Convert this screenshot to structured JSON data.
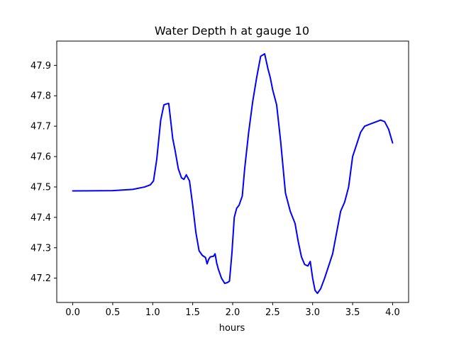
{
  "chart_data": {
    "type": "line",
    "title": "Water Depth h at gauge 10",
    "xlabel": "hours",
    "ylabel": "",
    "xlim": [
      -0.2,
      4.2
    ],
    "ylim": [
      47.12,
      47.98
    ],
    "xticks": [
      0.0,
      0.5,
      1.0,
      1.5,
      2.0,
      2.5,
      3.0,
      3.5,
      4.0
    ],
    "xtick_labels": [
      "0.0",
      "0.5",
      "1.0",
      "1.5",
      "2.0",
      "2.5",
      "3.0",
      "3.5",
      "4.0"
    ],
    "yticks": [
      47.2,
      47.3,
      47.4,
      47.5,
      47.6,
      47.7,
      47.8,
      47.9
    ],
    "ytick_labels": [
      "47.2",
      "47.3",
      "47.4",
      "47.5",
      "47.6",
      "47.7",
      "47.8",
      "47.9"
    ],
    "grid": false,
    "series": [
      {
        "color": "#0000ff",
        "x": [
          0.0,
          0.5,
          0.75,
          0.9,
          0.97,
          1.01,
          1.05,
          1.1,
          1.14,
          1.17,
          1.2,
          1.22,
          1.25,
          1.28,
          1.32,
          1.36,
          1.39,
          1.42,
          1.46,
          1.5,
          1.54,
          1.58,
          1.62,
          1.66,
          1.68,
          1.7,
          1.72,
          1.76,
          1.78,
          1.8,
          1.82,
          1.86,
          1.9,
          1.93,
          1.96,
          1.99,
          2.02,
          2.05,
          2.08,
          2.12,
          2.15,
          2.2,
          2.25,
          2.3,
          2.35,
          2.4,
          2.44,
          2.47,
          2.5,
          2.55,
          2.6,
          2.66,
          2.72,
          2.78,
          2.82,
          2.86,
          2.9,
          2.94,
          2.97,
          3.0,
          3.03,
          3.06,
          3.1,
          3.15,
          3.2,
          3.25,
          3.3,
          3.35,
          3.4,
          3.45,
          3.5,
          3.55,
          3.6,
          3.65,
          3.7,
          3.75,
          3.8,
          3.85,
          3.9,
          3.95,
          4.0
        ],
        "y": [
          47.487,
          47.488,
          47.492,
          47.5,
          47.507,
          47.52,
          47.59,
          47.72,
          47.77,
          47.773,
          47.775,
          47.73,
          47.66,
          47.62,
          47.56,
          47.53,
          47.525,
          47.54,
          47.52,
          47.44,
          47.35,
          47.29,
          47.275,
          47.268,
          47.247,
          47.262,
          47.27,
          47.272,
          47.28,
          47.25,
          47.23,
          47.2,
          47.183,
          47.185,
          47.19,
          47.28,
          47.4,
          47.43,
          47.44,
          47.47,
          47.56,
          47.68,
          47.78,
          47.86,
          47.93,
          47.938,
          47.89,
          47.86,
          47.82,
          47.77,
          47.65,
          47.48,
          47.42,
          47.38,
          47.32,
          47.27,
          47.245,
          47.24,
          47.255,
          47.2,
          47.16,
          47.15,
          47.165,
          47.2,
          47.24,
          47.28,
          47.35,
          47.42,
          47.45,
          47.5,
          47.6,
          47.64,
          47.68,
          47.7,
          47.705,
          47.71,
          47.715,
          47.72,
          47.715,
          47.69,
          47.645
        ]
      }
    ]
  }
}
